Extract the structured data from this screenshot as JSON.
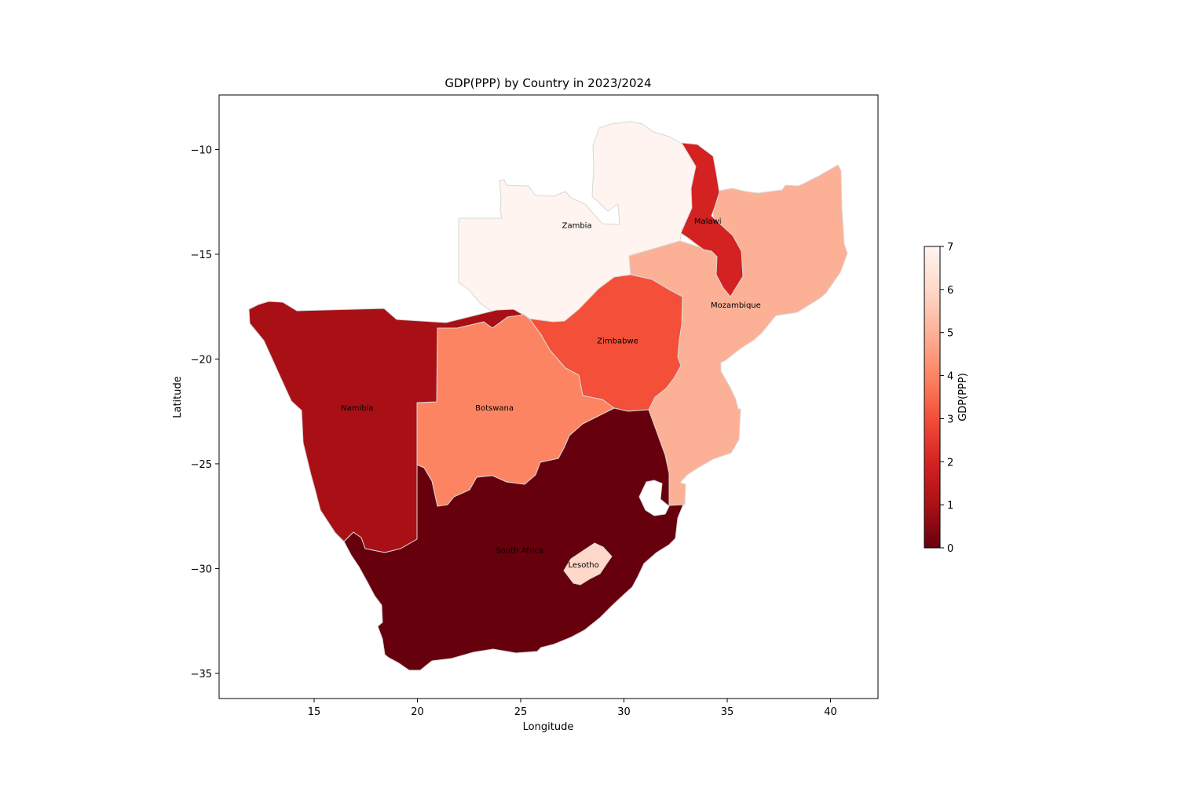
{
  "map": {
    "title": "GDP(PPP) by Country in 2023/2024",
    "xlabel": "Longitude",
    "ylabel": "Latitude",
    "xlim": [
      10.4,
      42.3
    ],
    "ylim": [
      -36.2,
      -7.4
    ],
    "xticks": [
      15,
      20,
      25,
      30,
      35,
      40
    ],
    "yticks": [
      -10,
      -15,
      -20,
      -25,
      -30,
      -35
    ],
    "colormap": "Reds_reversed",
    "colorbar": {
      "label": "GDP(PPP)",
      "min": 0,
      "max": 7,
      "ticks": [
        0,
        1,
        2,
        3,
        4,
        5,
        6,
        7
      ]
    },
    "countries": [
      {
        "id": "zambia",
        "name": "Zambia",
        "value": 7.0,
        "color": "#fff4ef",
        "label_lon": 27.0,
        "label_lat": -13.6
      },
      {
        "id": "malawi",
        "name": "Malawi",
        "value": 1.95,
        "color": "#d42121",
        "label_lon": 33.4,
        "label_lat": -13.4
      },
      {
        "id": "mozambique",
        "name": "Mozambique",
        "value": 5.0,
        "color": "#fcb095",
        "label_lon": 34.2,
        "label_lat": -17.4
      },
      {
        "id": "zimbabwe",
        "name": "Zimbabwe",
        "value": 3.0,
        "color": "#f34f39",
        "label_lon": 28.7,
        "label_lat": -19.1
      },
      {
        "id": "botswana",
        "name": "Botswana",
        "value": 4.0,
        "color": "#fc8462",
        "label_lon": 22.8,
        "label_lat": -22.3
      },
      {
        "id": "namibia",
        "name": "Namibia",
        "value": 1.0,
        "color": "#a91016",
        "label_lon": 16.3,
        "label_lat": -22.3
      },
      {
        "id": "south-africa",
        "name": "South Africa",
        "value": 0.0,
        "color": "#67000d",
        "label_lon": 23.8,
        "label_lat": -29.1
      },
      {
        "id": "lesotho",
        "name": "Lesotho",
        "value": 6.0,
        "color": "#fed9ca",
        "label_lon": 27.3,
        "label_lat": -29.8
      }
    ]
  }
}
